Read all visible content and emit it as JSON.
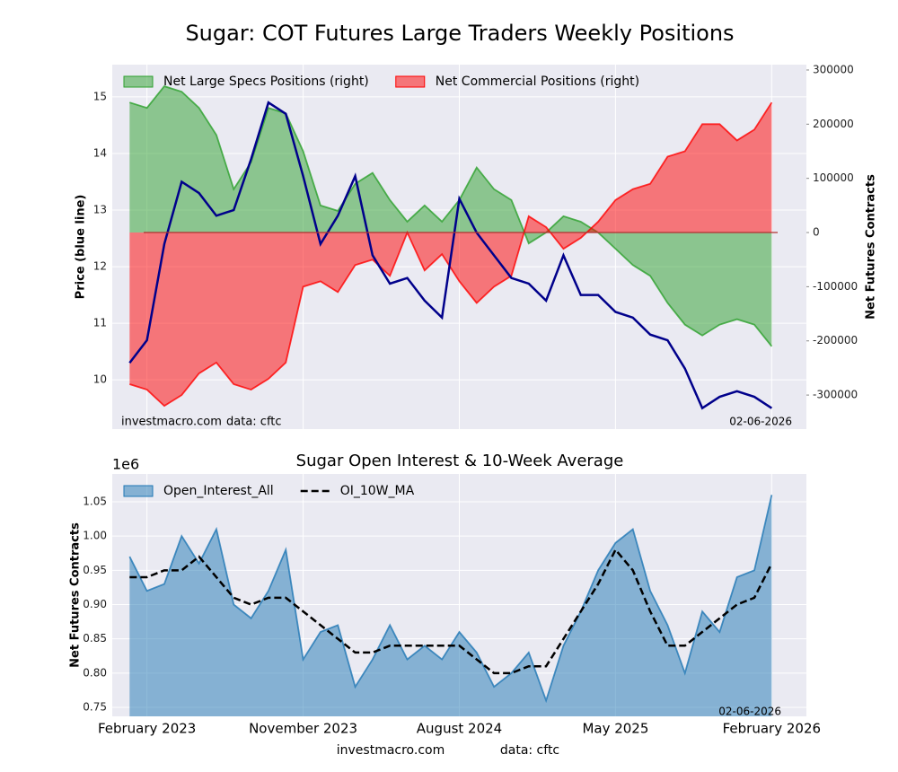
{
  "title": "Sugar: COT Futures Large Traders Weekly Positions",
  "footer": {
    "source": "investmacro.com",
    "data": "data: cftc"
  },
  "chart_data": [
    {
      "type": "area",
      "x": [
        "2023-01",
        "2023-02",
        "2023-03",
        "2023-04",
        "2023-05",
        "2023-06",
        "2023-07",
        "2023-08",
        "2023-09",
        "2023-10",
        "2023-11",
        "2023-12",
        "2024-01",
        "2024-02",
        "2024-03",
        "2024-04",
        "2024-05",
        "2024-06",
        "2024-07",
        "2024-08",
        "2024-09",
        "2024-10",
        "2024-11",
        "2024-12",
        "2025-01",
        "2025-02",
        "2025-03",
        "2025-04",
        "2025-05",
        "2025-06",
        "2025-07",
        "2025-08",
        "2025-09",
        "2025-10",
        "2025-11",
        "2025-12",
        "2026-01",
        "2026-02"
      ],
      "xlim": [
        "2022-12",
        "2026-04"
      ],
      "ylabel": "Price (blue line)",
      "y2label": "Net Futures Contracts",
      "ylim": [
        9.13,
        15.57
      ],
      "yticks": [
        10,
        11,
        12,
        13,
        14,
        15
      ],
      "y2lim": [
        -362800,
        309900
      ],
      "y2ticks": [
        -300000,
        -200000,
        -100000,
        0,
        100000,
        200000,
        300000
      ],
      "grid": true,
      "legend": "upper left",
      "series": [
        {
          "name": "Net Large Specs Positions (right)",
          "color": "#2ca02c",
          "style": "area",
          "axis": "y2",
          "values": [
            240000,
            230000,
            270000,
            260000,
            230000,
            180000,
            80000,
            130000,
            230000,
            220000,
            150000,
            50000,
            40000,
            90000,
            110000,
            60000,
            20000,
            50000,
            20000,
            60000,
            120000,
            80000,
            60000,
            -20000,
            0,
            30000,
            20000,
            0,
            -30000,
            -60000,
            -80000,
            -130000,
            -170000,
            -190000,
            -170000,
            -160000,
            -170000,
            -210000
          ]
        },
        {
          "name": "Net Commercial Positions (right)",
          "color": "#ff0000",
          "style": "area",
          "axis": "y2",
          "values": [
            -280000,
            -290000,
            -320000,
            -300000,
            -260000,
            -240000,
            -280000,
            -290000,
            -270000,
            -240000,
            -100000,
            -90000,
            -110000,
            -60000,
            -50000,
            -80000,
            0,
            -70000,
            -40000,
            -90000,
            -130000,
            -100000,
            -80000,
            30000,
            10000,
            -30000,
            -10000,
            20000,
            60000,
            80000,
            90000,
            140000,
            150000,
            200000,
            200000,
            170000,
            190000,
            240000
          ]
        },
        {
          "color": "#00008b",
          "style": "line",
          "axis": "y",
          "values": [
            10.3,
            10.7,
            12.4,
            13.5,
            13.3,
            12.9,
            13.0,
            13.9,
            14.9,
            14.7,
            13.6,
            12.4,
            12.9,
            13.6,
            12.2,
            11.7,
            11.8,
            11.4,
            11.1,
            13.2,
            12.6,
            12.2,
            11.8,
            11.7,
            11.4,
            12.2,
            11.5,
            11.5,
            11.2,
            11.1,
            10.8,
            10.7,
            10.2,
            9.5,
            9.7,
            9.8,
            9.7,
            9.5
          ]
        }
      ],
      "annotations": [
        "investmacro.com",
        "data: cftc",
        "02-06-2026"
      ]
    },
    {
      "type": "area",
      "title": "Sugar Open Interest & 10-Week Average",
      "x": [
        "2023-01",
        "2023-02",
        "2023-03",
        "2023-04",
        "2023-05",
        "2023-06",
        "2023-07",
        "2023-08",
        "2023-09",
        "2023-10",
        "2023-11",
        "2023-12",
        "2024-01",
        "2024-02",
        "2024-03",
        "2024-04",
        "2024-05",
        "2024-06",
        "2024-07",
        "2024-08",
        "2024-09",
        "2024-10",
        "2024-11",
        "2024-12",
        "2025-01",
        "2025-02",
        "2025-03",
        "2025-04",
        "2025-05",
        "2025-06",
        "2025-07",
        "2025-08",
        "2025-09",
        "2025-10",
        "2025-11",
        "2025-12",
        "2026-01",
        "2026-02"
      ],
      "xlim": [
        "2022-12",
        "2026-04"
      ],
      "xticks": [
        {
          "value": "2023-02",
          "label": "February 2023"
        },
        {
          "value": "2023-11",
          "label": "November 2023"
        },
        {
          "value": "2024-08",
          "label": "August 2024"
        },
        {
          "value": "2025-05",
          "label": "May 2025"
        },
        {
          "value": "2026-02",
          "label": "February 2026"
        }
      ],
      "ylabel": "Net Futures Contracts",
      "y_offset_label": "1e6",
      "ylim": [
        0.7369,
        1.0906
      ],
      "yticks": [
        0.75,
        {
          "value": 0.8,
          "label": "0.80"
        },
        0.85,
        {
          "value": 0.9,
          "label": "0.90"
        },
        0.95,
        {
          "value": 1,
          "label": "1.00"
        },
        1.05
      ],
      "grid": true,
      "legend": "upper left",
      "series": [
        {
          "name": "Open_Interest_All",
          "color": "#1f77b4",
          "style": "area",
          "axis": "y",
          "values": [
            0.97,
            0.92,
            0.93,
            1.0,
            0.96,
            1.01,
            0.9,
            0.88,
            0.92,
            0.98,
            0.82,
            0.86,
            0.87,
            0.78,
            0.82,
            0.87,
            0.82,
            0.84,
            0.82,
            0.86,
            0.83,
            0.78,
            0.8,
            0.83,
            0.76,
            0.84,
            0.89,
            0.95,
            0.99,
            1.01,
            0.92,
            0.87,
            0.8,
            0.89,
            0.86,
            0.94,
            0.95,
            1.06
          ]
        },
        {
          "name": "OI_10W_MA",
          "color": "#000000",
          "style": "dashed",
          "axis": "y",
          "values": [
            0.94,
            0.94,
            0.95,
            0.95,
            0.97,
            0.94,
            0.91,
            0.9,
            0.91,
            0.91,
            0.89,
            0.87,
            0.85,
            0.83,
            0.83,
            0.84,
            0.84,
            0.84,
            0.84,
            0.84,
            0.82,
            0.8,
            0.8,
            0.81,
            0.81,
            0.85,
            0.89,
            0.93,
            0.98,
            0.95,
            0.89,
            0.84,
            0.84,
            0.86,
            0.88,
            0.9,
            0.91,
            0.96
          ]
        }
      ],
      "annotations": [
        "02-06-2026"
      ]
    }
  ]
}
